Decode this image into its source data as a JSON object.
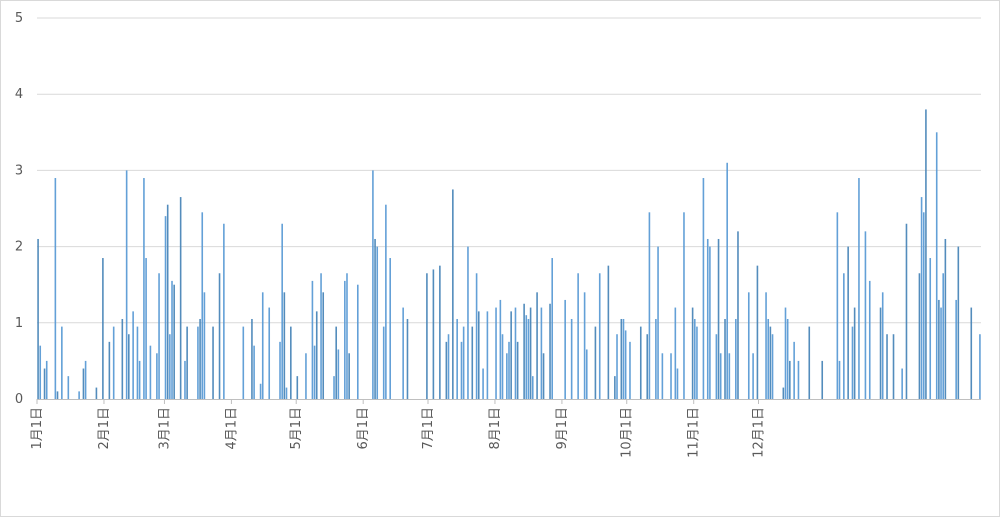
{
  "chart_data": {
    "type": "bar",
    "title": "",
    "xlabel": "",
    "ylabel": "",
    "ylim": [
      0,
      5
    ],
    "yticks": [
      "0",
      "1",
      "2",
      "3",
      "4",
      "5"
    ],
    "xticks": [
      "1月1日",
      "2月1日",
      "3月1日",
      "4月1日",
      "5月1日",
      "6月1日",
      "7月1日",
      "8月1日",
      "9月1日",
      "10月1日",
      "11月1日",
      "12月1日"
    ],
    "grid": true,
    "legend": "none",
    "colors": {
      "bar": "#5b9bd5",
      "barDark": "#4a86b8",
      "grid": "#d9d9d9",
      "axis": "#bfbfbf",
      "text": "#595959"
    },
    "series": [
      {
        "values": [
          2.1,
          0.7,
          0.0,
          0.4,
          0.5,
          0.0,
          0.0,
          0.0,
          2.9,
          0.1,
          0.0,
          0.95,
          0.0,
          0.0,
          0.3,
          0.0,
          0.0,
          0.0,
          0.0,
          0.1,
          0.0,
          0.4,
          0.5,
          0.0,
          0.0,
          0.0,
          0.0,
          0.15,
          0.0,
          0.0,
          1.85,
          0.0,
          0.0,
          0.75,
          0.0,
          0.95,
          0.0,
          0.0,
          0.0,
          1.05,
          0.0,
          3.0,
          0.85,
          0.0,
          1.15,
          0.0,
          0.95,
          0.5,
          0.0,
          2.9,
          1.85,
          0.0,
          0.7,
          0.0,
          0.0,
          0.6,
          1.65,
          0.0,
          0.0,
          2.4,
          2.55,
          0.85,
          1.55,
          1.5,
          0.0,
          0.0,
          2.65,
          0.0,
          0.5,
          0.95,
          0.0,
          0.0,
          0.0,
          0.0,
          0.95,
          1.05,
          2.45,
          1.4,
          0.0,
          0.0,
          0.0,
          0.95,
          0.0,
          0.0,
          1.65,
          0.0,
          2.3,
          0.0,
          0.0,
          0.0,
          0.0,
          0.0,
          0.0,
          0.0,
          0.0,
          0.95,
          0.0,
          0.0,
          0.0,
          1.05,
          0.7,
          0.0,
          0.0,
          0.2,
          1.4,
          0.0,
          0.0,
          1.2,
          0.0,
          0.0,
          0.0,
          0.0,
          0.75,
          2.3,
          1.4,
          0.15,
          0.0,
          0.95,
          0.0,
          0.0,
          0.3,
          0.0,
          0.0,
          0.0,
          0.6,
          0.0,
          0.0,
          1.55,
          0.7,
          1.15,
          0.0,
          1.65,
          1.4,
          0.0,
          0.0,
          0.0,
          0.0,
          0.3,
          0.95,
          0.65,
          0.0,
          0.0,
          1.55,
          1.65,
          0.6,
          0.0,
          0.0,
          0.0,
          1.5,
          0.0,
          0.0,
          0.0,
          0.0,
          0.0,
          0.0,
          3.0,
          2.1,
          2.0,
          0.0,
          0.0,
          0.95,
          2.55,
          0.0,
          1.85,
          0.0,
          0.0,
          0.0,
          0.0,
          0.0,
          1.2,
          0.0,
          1.05,
          0.0,
          0.0,
          0.0,
          0.0,
          0.0,
          0.0,
          0.0,
          0.0,
          1.65,
          0.0,
          0.0,
          1.7,
          0.0,
          0.0,
          1.75,
          0.0,
          0.0,
          0.75,
          0.85,
          0.0,
          2.75,
          0.0,
          1.05,
          0.0,
          0.75,
          0.95,
          0.0,
          2.0,
          0.0,
          0.95,
          0.0,
          1.65,
          1.15,
          0.0,
          0.4,
          0.0,
          1.15,
          0.0,
          0.0,
          0.0,
          1.2,
          0.0,
          1.3,
          0.85,
          0.0,
          0.6,
          0.75,
          1.15,
          0.0,
          1.2,
          0.75,
          0.0,
          0.0,
          1.25,
          1.1,
          1.05,
          1.2,
          0.3,
          0.0,
          1.4,
          0.0,
          1.2,
          0.6,
          0.0,
          0.0,
          1.25,
          1.85,
          0.0,
          0.0,
          0.0,
          0.0,
          0.0,
          1.3,
          0.0,
          0.0,
          1.05,
          0.0,
          0.0,
          1.65,
          0.0,
          0.0,
          1.4,
          0.65,
          0.0,
          0.0,
          0.0,
          0.95,
          0.0,
          1.65,
          0.0,
          0.0,
          0.0,
          1.75,
          0.0,
          0.0,
          0.3,
          0.85,
          0.0,
          1.05,
          1.05,
          0.9,
          0.0,
          0.75,
          0.0,
          0.0,
          0.0,
          0.0,
          0.95,
          0.0,
          0.0,
          0.85,
          2.45,
          0.0,
          0.0,
          1.05,
          2.0,
          0.0,
          0.6,
          0.0,
          0.0,
          0.0,
          0.6,
          0.0,
          1.2,
          0.4,
          0.0,
          0.0,
          2.45,
          0.0,
          0.0,
          0.0,
          1.2,
          1.05,
          0.95,
          0.0,
          0.0,
          2.9,
          0.0,
          2.1,
          2.0,
          0.0,
          0.0,
          0.85,
          2.1,
          0.6,
          0.0,
          1.05,
          3.1,
          0.6,
          0.0,
          0.0,
          1.05,
          2.2,
          0.0,
          0.0,
          0.0,
          0.0,
          1.4,
          0.0,
          0.6,
          0.0,
          1.75,
          0.0,
          0.0,
          0.0,
          1.4,
          1.05,
          0.95,
          0.85,
          0.0,
          0.0,
          0.0,
          0.0,
          0.15,
          1.2,
          1.05,
          0.5,
          0.0,
          0.75,
          0.0,
          0.5,
          0.0,
          0.0,
          0.0,
          0.0,
          0.95,
          0.0,
          0.0,
          0.0,
          0.0,
          0.0,
          0.5,
          0.0,
          0.0,
          0.0,
          0.0,
          0.0,
          0.0,
          2.45,
          0.5,
          0.0,
          1.65,
          0.0,
          2.0,
          0.0,
          0.95,
          1.2,
          0.0,
          2.9,
          0.0,
          0.0,
          2.2,
          0.0,
          1.55,
          0.0,
          0.0,
          0.0,
          0.0,
          1.2,
          1.4,
          0.0,
          0.85,
          0.0,
          0.0,
          0.85,
          0.0,
          0.0,
          0.0,
          0.4,
          0.0,
          2.3,
          0.0,
          0.0,
          0.0,
          0.0,
          0.0,
          1.65,
          2.65,
          2.45,
          3.8,
          0.0,
          1.85,
          0.0,
          0.0,
          3.5,
          1.3,
          1.2,
          1.65,
          2.1,
          0.0,
          0.0,
          0.0,
          0.0,
          1.3,
          2.0,
          0.0,
          0.0,
          0.0,
          0.0,
          0.0,
          1.2,
          0.0,
          0.0,
          0.0,
          0.85
        ]
      }
    ]
  }
}
